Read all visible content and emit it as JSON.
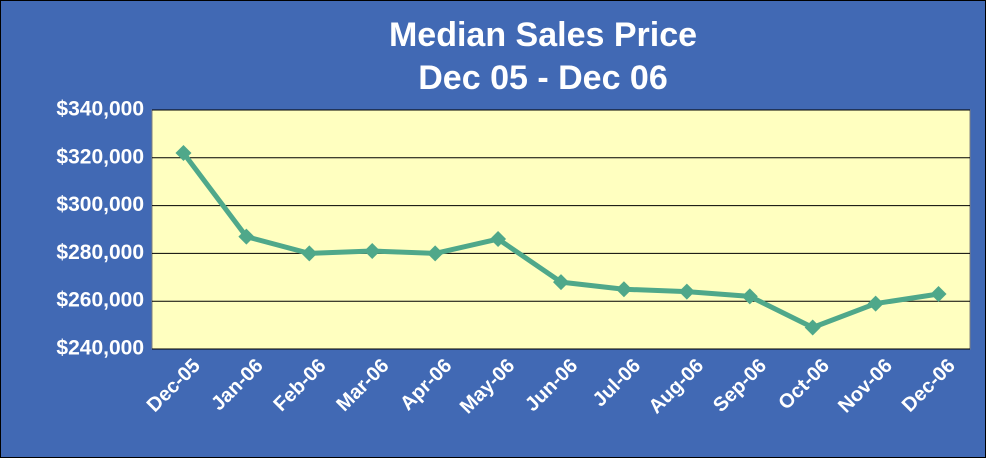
{
  "chart_data": {
    "type": "line",
    "title": "Median Sales Price",
    "subtitle": "Dec 05 - Dec 06",
    "categories": [
      "Dec-05",
      "Jan-06",
      "Feb-06",
      "Mar-06",
      "Apr-06",
      "May-06",
      "Jun-06",
      "Jul-06",
      "Aug-06",
      "Sep-06",
      "Oct-06",
      "Nov-06",
      "Dec-06"
    ],
    "values": [
      322000,
      287000,
      280000,
      281000,
      280000,
      286000,
      268000,
      265000,
      264000,
      262000,
      249000,
      259000,
      263000
    ],
    "color": "#4fa88a",
    "ylim": [
      240000,
      340000
    ],
    "yticks": [
      {
        "value": 240000,
        "label": "$240,000"
      },
      {
        "value": 260000,
        "label": "$260,000"
      },
      {
        "value": 280000,
        "label": "$280,000"
      },
      {
        "value": 300000,
        "label": "$300,000"
      },
      {
        "value": 320000,
        "label": "$320,000"
      },
      {
        "value": 340000,
        "label": "$340,000"
      }
    ],
    "grid": true
  }
}
